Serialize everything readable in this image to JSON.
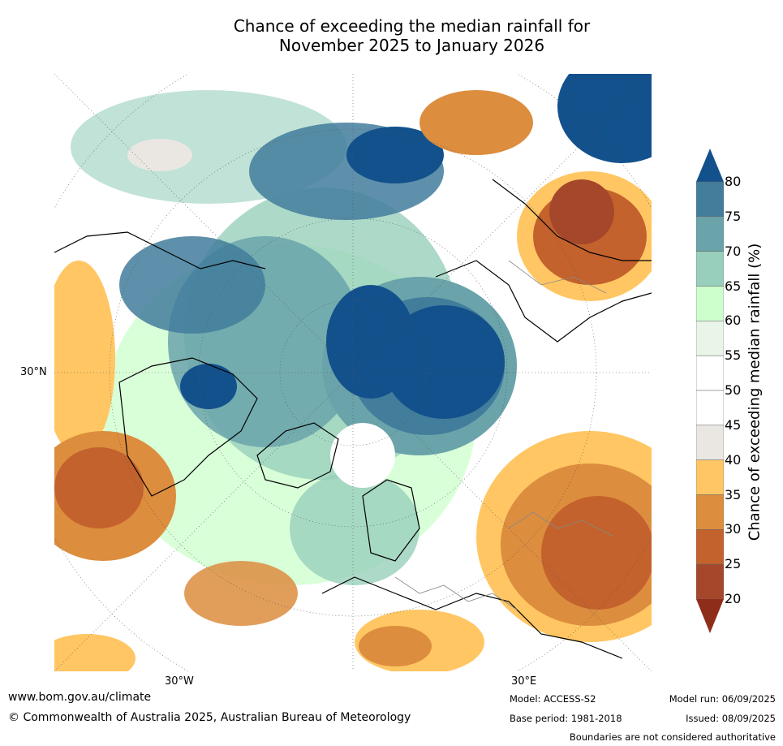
{
  "title": {
    "line1": "Chance of exceeding the median rainfall for",
    "line2": "November 2025 to January 2026"
  },
  "map": {
    "lat_label": "30°N",
    "lon_label_west": "30°W",
    "lon_label_east": "30°E"
  },
  "colorbar": {
    "title": "Chance of exceeding median rainfall (%)",
    "ticks": [
      "80",
      "75",
      "70",
      "65",
      "60",
      "55",
      "50",
      "45",
      "40",
      "35",
      "30",
      "25",
      "20"
    ],
    "colors": [
      "#13518d",
      "#427d9c",
      "#6aa3aa",
      "#98cfbc",
      "#ccffcc",
      "#e8f5e8",
      "#ffffff",
      "#ffffff",
      "#eae7e2",
      "#ffc663",
      "#dc8d3e",
      "#c3622c",
      "#a5472a",
      "#8e2e1a"
    ]
  },
  "footer": {
    "website": "www.bom.gov.au/climate",
    "copyright": "© Commonwealth of Australia 2025, Australian Bureau of Meteorology",
    "model": "Model: ACCESS-S2",
    "base_period": "Base period: 1981-2018",
    "model_run": "Model run: 06/09/2025",
    "issued": "Issued: 08/09/2025",
    "disclaimer": "Boundaries are not considered authoritative"
  }
}
